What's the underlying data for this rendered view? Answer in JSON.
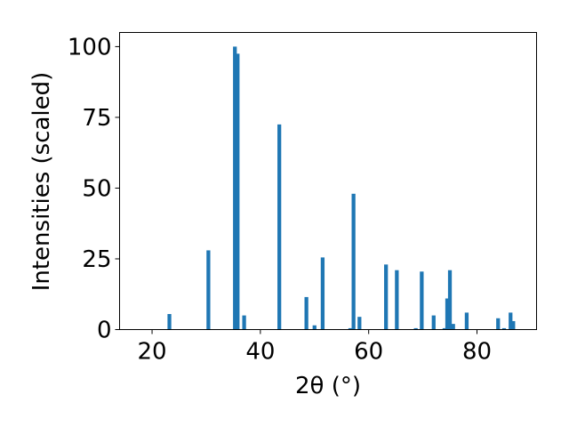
{
  "chart_data": {
    "type": "bar",
    "title": "",
    "xlabel": "2θ (°)",
    "ylabel": "Intensities (scaled)",
    "xlim": [
      14,
      91
    ],
    "ylim": [
      0,
      105
    ],
    "xticks": [
      20,
      40,
      60,
      80
    ],
    "yticks": [
      0,
      25,
      50,
      75,
      100
    ],
    "grid": false,
    "bar_color": "#1f77b4",
    "bar_width": 0.7,
    "bars": [
      {
        "x": 23.2,
        "y": 5.5
      },
      {
        "x": 30.4,
        "y": 28
      },
      {
        "x": 35.3,
        "y": 100
      },
      {
        "x": 35.8,
        "y": 97.5
      },
      {
        "x": 37.0,
        "y": 5
      },
      {
        "x": 43.5,
        "y": 72.5
      },
      {
        "x": 48.5,
        "y": 11.5
      },
      {
        "x": 50.0,
        "y": 1.5
      },
      {
        "x": 51.5,
        "y": 25.5
      },
      {
        "x": 56.6,
        "y": 0.5
      },
      {
        "x": 57.2,
        "y": 48
      },
      {
        "x": 58.3,
        "y": 4.5
      },
      {
        "x": 63.2,
        "y": 23
      },
      {
        "x": 65.2,
        "y": 21
      },
      {
        "x": 68.7,
        "y": 0.5
      },
      {
        "x": 69.8,
        "y": 20.5
      },
      {
        "x": 72.0,
        "y": 5
      },
      {
        "x": 74.0,
        "y": 0.5
      },
      {
        "x": 74.5,
        "y": 11
      },
      {
        "x": 75.0,
        "y": 21
      },
      {
        "x": 75.6,
        "y": 2
      },
      {
        "x": 78.1,
        "y": 6
      },
      {
        "x": 83.9,
        "y": 4
      },
      {
        "x": 85.0,
        "y": 0.5
      },
      {
        "x": 86.2,
        "y": 6
      },
      {
        "x": 86.7,
        "y": 3
      }
    ]
  }
}
